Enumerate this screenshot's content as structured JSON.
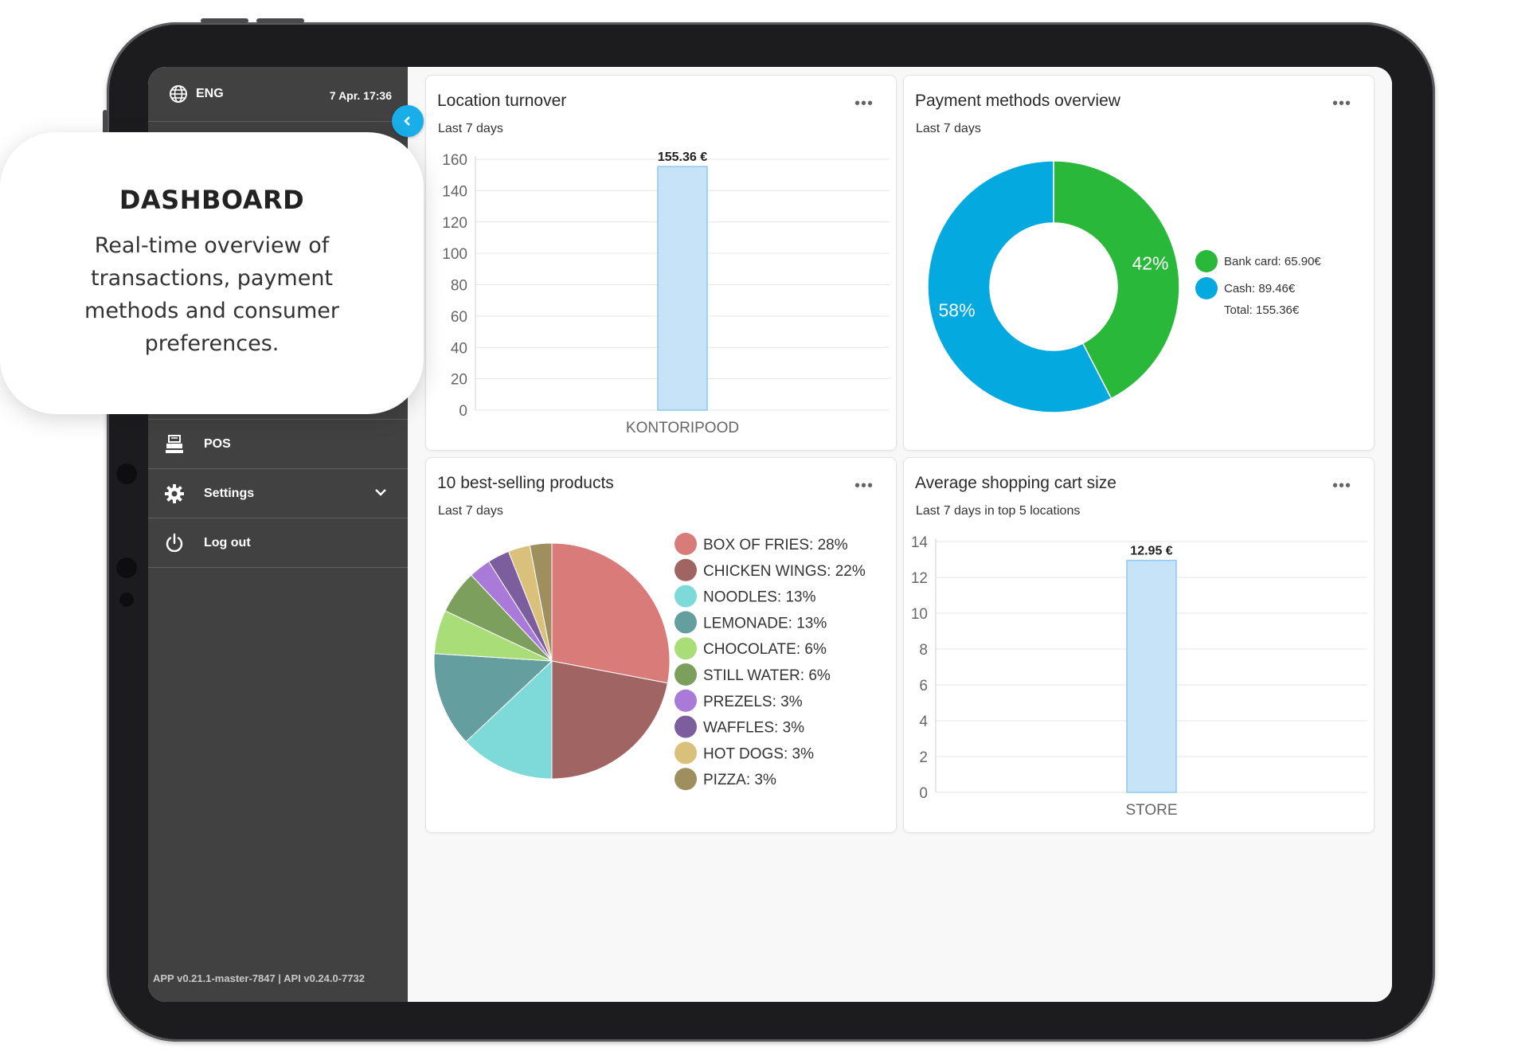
{
  "callout": {
    "title": "DASHBOARD",
    "body": "Real-time overview of transactions, payment methods and consumer preferences."
  },
  "header": {
    "language": "ENG",
    "datetime": "7 Apr. 17:36"
  },
  "sidebar": {
    "items": [
      {
        "label": "POS",
        "icon": "cash-register-icon"
      },
      {
        "label": "Settings",
        "icon": "gear-icon"
      },
      {
        "label": "Log out",
        "icon": "power-icon"
      }
    ],
    "version": "APP v0.21.1-master-7847 | API v0.24.0-7732"
  },
  "colors": {
    "sidebar": "#414141",
    "accent": "#19aee8",
    "bar_fill": "#c6e3f7",
    "bar_stroke": "#8fc8ee",
    "bank_card": "#2ab83a",
    "cash": "#04a9e0"
  },
  "cards": {
    "location": {
      "title": "Location turnover",
      "subtitle": "Last 7 days",
      "menu": "•••"
    },
    "payment": {
      "title": "Payment methods overview",
      "subtitle": "Last 7 days",
      "menu": "•••"
    },
    "products": {
      "title": "10 best-selling products",
      "subtitle": "Last 7 days",
      "menu": "•••"
    },
    "cart": {
      "title": "Average shopping cart size",
      "subtitle": "Last 7 days in top 5 locations",
      "menu": "•••"
    }
  },
  "chart_data": [
    {
      "type": "bar",
      "categories": [
        "KONTORIPOOD"
      ],
      "values": [
        155.36
      ],
      "data_labels": [
        "155.36 €"
      ],
      "yticks": [
        0,
        20,
        40,
        60,
        80,
        100,
        120,
        140,
        160
      ],
      "ylim": [
        0,
        160
      ],
      "grid": true
    },
    {
      "type": "pie",
      "donut": true,
      "labels": [
        "Bank card",
        "Cash"
      ],
      "values": [
        65.9,
        89.46
      ],
      "percent_labels": [
        "42%",
        "58%"
      ],
      "legend": [
        "Bank card: 65.90€",
        "Cash: 89.46€"
      ],
      "total_label": "Total: 155.36€",
      "colors": [
        "#2ab83a",
        "#04a9e0"
      ],
      "legend_position": "right"
    },
    {
      "type": "pie",
      "labels": [
        "BOX OF FRIES",
        "CHICKEN WINGS",
        "NOODLES",
        "LEMONADE",
        "CHOCOLATE",
        "STILL WATER",
        "PREZELS",
        "WAFFLES",
        "HOT DOGS",
        "PIZZA"
      ],
      "values": [
        28,
        22,
        13,
        13,
        6,
        6,
        3,
        3,
        3,
        3
      ],
      "legend": [
        "BOX OF FRIES: 28%",
        "CHICKEN WINGS: 22%",
        "NOODLES: 13%",
        "LEMONADE: 13%",
        "CHOCOLATE: 6%",
        "STILL WATER: 6%",
        "PREZELS: 3%",
        "WAFFLES: 3%",
        "HOT DOGS: 3%",
        "PIZZA: 3%"
      ],
      "colors": [
        "#d97b78",
        "#a06563",
        "#7ed9d9",
        "#649e9f",
        "#a9dd78",
        "#7c9f5e",
        "#a97ad8",
        "#7c5d9e",
        "#d9c17c",
        "#9f8e5e"
      ],
      "legend_position": "right"
    },
    {
      "type": "bar",
      "categories": [
        "STORE"
      ],
      "values": [
        12.95
      ],
      "data_labels": [
        "12.95 €"
      ],
      "yticks": [
        0,
        2,
        4,
        6,
        8,
        10,
        12,
        14
      ],
      "ylim": [
        0,
        14
      ],
      "grid": true
    }
  ]
}
